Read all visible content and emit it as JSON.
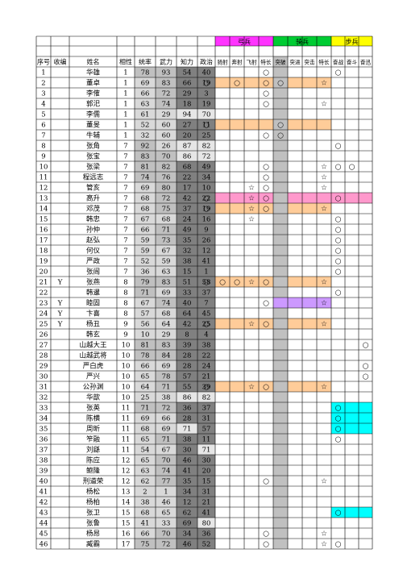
{
  "colors": {
    "bow": "#ff33ff",
    "cav": "#00cc33",
    "inf": "#ffff00",
    "stat_fill": "#c0c0c0",
    "stat_dark": "#808080",
    "col_gray": "#c0c0c0",
    "row_orange": "#ffcc99",
    "row_pink": "#ff99cc",
    "violet": "#cc99ff",
    "cyan": "#00ffff"
  },
  "groups": [
    {
      "label": "弓兵",
      "color": "#ff33ff"
    },
    {
      "label": "骑兵",
      "color": "#00cc33"
    },
    {
      "label": "步兵",
      "color": "#ffff00"
    }
  ],
  "headers": [
    "序号",
    "收编",
    "姓名",
    "相性",
    "统率",
    "武力",
    "知力",
    "政治",
    "骑射",
    "奔射",
    "飞射",
    "特长",
    "突破",
    "突进",
    "突击",
    "特长",
    "奋战",
    "奋斗",
    "奋迅"
  ],
  "rows": [
    {
      "no": "1",
      "rec": "",
      "name": "华雄",
      "aff": "1",
      "stats": [
        "78",
        "93",
        "54",
        "40"
      ],
      "marks": {
        "12": "○",
        "17": "○"
      }
    },
    {
      "no": "2",
      "rec": "",
      "name": "董卓",
      "aff": "1",
      "stats": [
        "69",
        "83",
        "66",
        "19"
      ],
      "marks": {
        "8": "○",
        "10": "○",
        "12": "○",
        "13": "○",
        "16": "☆"
      }
    },
    {
      "no": "3",
      "rec": "",
      "name": "李傕",
      "aff": "1",
      "stats": [
        "66",
        "72",
        "29",
        "3"
      ],
      "marks": {
        "12": "○"
      }
    },
    {
      "no": "4",
      "rec": "",
      "name": "郭汜",
      "aff": "1",
      "stats": [
        "63",
        "74",
        "18",
        "19"
      ],
      "marks": {
        "12": "○",
        "16": "☆"
      }
    },
    {
      "no": "5",
      "rec": "",
      "name": "李儒",
      "aff": "1",
      "stats": [
        "61",
        "29",
        "94",
        "70"
      ],
      "marks": {}
    },
    {
      "no": "6",
      "rec": "",
      "name": "董旻",
      "aff": "1",
      "stats": [
        "52",
        "60",
        "27",
        "11"
      ],
      "marks": {
        "8": "○",
        "13": "○"
      }
    },
    {
      "no": "7",
      "rec": "",
      "name": "牛辅",
      "aff": "1",
      "stats": [
        "32",
        "60",
        "20",
        "25"
      ],
      "marks": {
        "12": "○",
        "13": "○"
      }
    },
    {
      "no": "8",
      "rec": "",
      "name": "张角",
      "aff": "7",
      "stats": [
        "92",
        "26",
        "87",
        "82"
      ],
      "marks": {
        "17": "○"
      }
    },
    {
      "no": "9",
      "rec": "",
      "name": "张宝",
      "aff": "7",
      "stats": [
        "83",
        "70",
        "86",
        "72"
      ],
      "marks": {}
    },
    {
      "no": "10",
      "rec": "",
      "name": "张梁",
      "aff": "7",
      "stats": [
        "81",
        "82",
        "68",
        "49"
      ],
      "marks": {
        "12": "○",
        "16": "☆",
        "17": "○",
        "18": "○"
      }
    },
    {
      "no": "11",
      "rec": "",
      "name": "程远志",
      "aff": "7",
      "stats": [
        "74",
        "76",
        "22",
        "34"
      ],
      "marks": {
        "12": "○",
        "16": "☆"
      }
    },
    {
      "no": "12",
      "rec": "",
      "name": "管亥",
      "aff": "7",
      "stats": [
        "69",
        "80",
        "17",
        "10"
      ],
      "marks": {
        "11": "☆",
        "12": "○",
        "16": "☆"
      }
    },
    {
      "no": "13",
      "rec": "",
      "name": "高升",
      "aff": "7",
      "stats": [
        "68",
        "72",
        "42",
        "22"
      ],
      "marks": {
        "8": "○",
        "11": "☆",
        "12": "○",
        "17": "○"
      }
    },
    {
      "no": "14",
      "rec": "",
      "name": "邓茂",
      "aff": "7",
      "stats": [
        "68",
        "75",
        "37",
        "19"
      ],
      "marks": {
        "8": "○",
        "11": "☆",
        "12": "○",
        "16": "☆"
      }
    },
    {
      "no": "15",
      "rec": "",
      "name": "韩忠",
      "aff": "7",
      "stats": [
        "67",
        "68",
        "24",
        "16"
      ],
      "marks": {
        "11": "☆",
        "17": "○"
      }
    },
    {
      "no": "16",
      "rec": "",
      "name": "孙仲",
      "aff": "7",
      "stats": [
        "66",
        "71",
        "49",
        "9"
      ],
      "marks": {
        "17": "○"
      }
    },
    {
      "no": "17",
      "rec": "",
      "name": "赵弘",
      "aff": "7",
      "stats": [
        "59",
        "73",
        "35",
        "26"
      ],
      "marks": {
        "17": "○"
      }
    },
    {
      "no": "18",
      "rec": "",
      "name": "何仪",
      "aff": "7",
      "stats": [
        "59",
        "67",
        "32",
        "12"
      ],
      "marks": {
        "17": "○"
      }
    },
    {
      "no": "19",
      "rec": "",
      "name": "严政",
      "aff": "7",
      "stats": [
        "52",
        "59",
        "38",
        "41"
      ],
      "marks": {
        "17": "○"
      }
    },
    {
      "no": "20",
      "rec": "",
      "name": "张闿",
      "aff": "7",
      "stats": [
        "36",
        "63",
        "15",
        "1"
      ],
      "marks": {
        "17": "○"
      }
    },
    {
      "no": "21",
      "rec": "Y",
      "name": "张燕",
      "aff": "8",
      "stats": [
        "79",
        "83",
        "51",
        "58"
      ],
      "marks": {
        "8": "○",
        "9": "○",
        "10": "○",
        "11": "☆",
        "12": "○",
        "16": "☆"
      }
    },
    {
      "no": "22",
      "rec": "",
      "name": "韩暹",
      "aff": "8",
      "stats": [
        "71",
        "69",
        "33",
        "37"
      ],
      "marks": {
        "17": "○"
      }
    },
    {
      "no": "23",
      "rec": "Y",
      "name": "睦固",
      "aff": "8",
      "stats": [
        "67",
        "74",
        "40",
        "7"
      ],
      "marks": {
        "12": "○",
        "16": "☆"
      }
    },
    {
      "no": "24",
      "rec": "Y",
      "name": "卞喜",
      "aff": "8",
      "stats": [
        "57",
        "68",
        "64",
        "45"
      ],
      "marks": {}
    },
    {
      "no": "25",
      "rec": "Y",
      "name": "杨丑",
      "aff": "9",
      "stats": [
        "56",
        "64",
        "42",
        "25"
      ],
      "marks": {
        "8": "○",
        "11": "☆",
        "12": "○",
        "16": "☆"
      }
    },
    {
      "no": "26",
      "rec": "",
      "name": "韩玄",
      "aff": "9",
      "stats": [
        "10",
        "29",
        "8",
        "4"
      ],
      "marks": {}
    },
    {
      "no": "27",
      "rec": "",
      "name": "山越大王",
      "aff": "10",
      "stats": [
        "81",
        "83",
        "39",
        "38"
      ],
      "marks": {
        "19": "○"
      }
    },
    {
      "no": "28",
      "rec": "",
      "name": "山越武将",
      "aff": "10",
      "stats": [
        "78",
        "84",
        "28",
        "22"
      ],
      "marks": {}
    },
    {
      "no": "29",
      "rec": "",
      "name": "严白虎",
      "aff": "10",
      "stats": [
        "66",
        "69",
        "28",
        "24"
      ],
      "marks": {
        "19": "○"
      }
    },
    {
      "no": "30",
      "rec": "",
      "name": "严兴",
      "aff": "10",
      "stats": [
        "65",
        "78",
        "57",
        "21"
      ],
      "marks": {
        "19": "○"
      }
    },
    {
      "no": "31",
      "rec": "",
      "name": "公孙渊",
      "aff": "10",
      "stats": [
        "64",
        "71",
        "55",
        "39"
      ],
      "marks": {
        "8": "○",
        "11": "☆",
        "12": "○",
        "16": "☆"
      }
    },
    {
      "no": "32",
      "rec": "",
      "name": "华歆",
      "aff": "10",
      "stats": [
        "25",
        "38",
        "86",
        "82"
      ],
      "marks": {}
    },
    {
      "no": "33",
      "rec": "",
      "name": "张英",
      "aff": "11",
      "stats": [
        "71",
        "72",
        "36",
        "37"
      ],
      "marks": {
        "17": "○"
      }
    },
    {
      "no": "34",
      "rec": "",
      "name": "陈横",
      "aff": "11",
      "stats": [
        "69",
        "66",
        "28",
        "31"
      ],
      "marks": {
        "17": "○"
      }
    },
    {
      "no": "35",
      "rec": "",
      "name": "周昕",
      "aff": "11",
      "stats": [
        "68",
        "69",
        "71",
        "57"
      ],
      "marks": {
        "17": "○"
      }
    },
    {
      "no": "36",
      "rec": "",
      "name": "笮融",
      "aff": "11",
      "stats": [
        "65",
        "71",
        "38",
        "11"
      ],
      "marks": {
        "17": "○"
      }
    },
    {
      "no": "37",
      "rec": "",
      "name": "刘繇",
      "aff": "11",
      "stats": [
        "54",
        "67",
        "30",
        "71"
      ],
      "marks": {}
    },
    {
      "no": "38",
      "rec": "",
      "name": "陈应",
      "aff": "12",
      "stats": [
        "65",
        "70",
        "46",
        "30"
      ],
      "marks": {}
    },
    {
      "no": "39",
      "rec": "",
      "name": "鲍隆",
      "aff": "12",
      "stats": [
        "63",
        "74",
        "41",
        "20"
      ],
      "marks": {}
    },
    {
      "no": "40",
      "rec": "",
      "name": "刑道荣",
      "aff": "12",
      "stats": [
        "62",
        "77",
        "35",
        "15"
      ],
      "marks": {
        "12": "○",
        "16": "☆"
      }
    },
    {
      "no": "41",
      "rec": "",
      "name": "杨松",
      "aff": "13",
      "stats": [
        "2",
        "1",
        "34",
        "31"
      ],
      "marks": {}
    },
    {
      "no": "42",
      "rec": "",
      "name": "杨柏",
      "aff": "14",
      "stats": [
        "38",
        "46",
        "12",
        "21"
      ],
      "marks": {}
    },
    {
      "no": "43",
      "rec": "",
      "name": "张卫",
      "aff": "15",
      "stats": [
        "68",
        "65",
        "62",
        "41"
      ],
      "marks": {
        "17": "○"
      }
    },
    {
      "no": "44",
      "rec": "",
      "name": "张鲁",
      "aff": "15",
      "stats": [
        "41",
        "33",
        "69",
        "80"
      ],
      "marks": {}
    },
    {
      "no": "45",
      "rec": "",
      "name": "杨昂",
      "aff": "16",
      "stats": [
        "66",
        "70",
        "34",
        "36"
      ],
      "marks": {
        "12": "○",
        "16": "☆"
      }
    },
    {
      "no": "46",
      "rec": "",
      "name": "臧霸",
      "aff": "17",
      "stats": [
        "75",
        "72",
        "46",
        "52"
      ],
      "marks": {
        "12": "○",
        "16": "☆",
        "17": "○"
      }
    }
  ]
}
